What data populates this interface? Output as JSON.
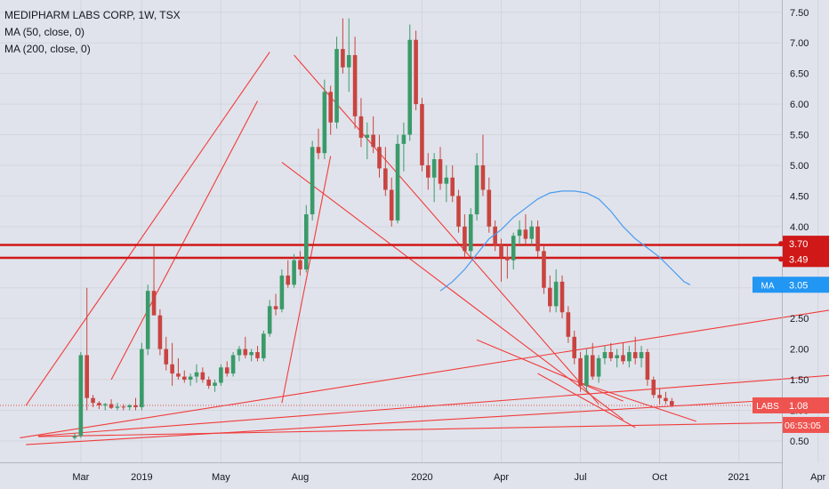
{
  "legend": {
    "title": "MEDIPHARM LABS CORP, 1W, TSX",
    "ma50": "MA (50, close, 0)",
    "ma200": "MA (200, close, 0)"
  },
  "chart_data": {
    "type": "candlestick",
    "y_ticks": [
      "0.50",
      "1.00",
      "1.50",
      "2.00",
      "2.50",
      "3.00",
      "3.50",
      "4.00",
      "4.50",
      "5.00",
      "5.50",
      "6.00",
      "6.50",
      "7.00",
      "7.50"
    ],
    "x_ticks": [
      {
        "label": "Mar",
        "week": 1
      },
      {
        "label": "2019",
        "week": 11
      },
      {
        "label": "May",
        "week": 24
      },
      {
        "label": "Aug",
        "week": 37
      },
      {
        "label": "2020",
        "week": 57
      },
      {
        "label": "Apr",
        "week": 70
      },
      {
        "label": "Jul",
        "week": 83
      },
      {
        "label": "Oct",
        "week": 96
      },
      {
        "label": "2021",
        "week": 109
      },
      {
        "label": "Apr",
        "week": 122
      }
    ],
    "ylim": [
      0.15,
      7.7
    ],
    "xlim": [
      -12,
      130
    ],
    "candles": [
      [
        0.55,
        0.62,
        0.52,
        0.58
      ],
      [
        0.58,
        1.95,
        0.55,
        1.9
      ],
      [
        1.9,
        3.0,
        1.0,
        1.2
      ],
      [
        1.2,
        1.25,
        1.05,
        1.12
      ],
      [
        1.12,
        1.15,
        1.02,
        1.08
      ],
      [
        1.08,
        1.12,
        1.0,
        1.1
      ],
      [
        1.1,
        1.18,
        1.02,
        1.04
      ],
      [
        1.04,
        1.12,
        1.0,
        1.06
      ],
      [
        1.06,
        1.1,
        1.0,
        1.05
      ],
      [
        1.05,
        1.1,
        1.0,
        1.08
      ],
      [
        1.08,
        1.2,
        1.0,
        1.05
      ],
      [
        1.05,
        2.1,
        1.0,
        2.0
      ],
      [
        2.0,
        3.05,
        1.9,
        2.95
      ],
      [
        2.95,
        3.7,
        2.6,
        2.55
      ],
      [
        2.55,
        2.65,
        1.9,
        2.0
      ],
      [
        2.0,
        2.2,
        1.65,
        1.75
      ],
      [
        1.75,
        2.1,
        1.4,
        1.6
      ],
      [
        1.6,
        1.85,
        1.5,
        1.55
      ],
      [
        1.55,
        1.65,
        1.45,
        1.5
      ],
      [
        1.5,
        1.6,
        1.4,
        1.55
      ],
      [
        1.55,
        1.75,
        1.45,
        1.62
      ],
      [
        1.62,
        1.7,
        1.45,
        1.5
      ],
      [
        1.5,
        1.55,
        1.35,
        1.4
      ],
      [
        1.4,
        1.5,
        1.3,
        1.45
      ],
      [
        1.45,
        1.75,
        1.4,
        1.7
      ],
      [
        1.7,
        1.8,
        1.55,
        1.6
      ],
      [
        1.6,
        1.95,
        1.55,
        1.9
      ],
      [
        1.9,
        2.05,
        1.8,
        2.0
      ],
      [
        2.0,
        2.2,
        1.85,
        1.9
      ],
      [
        1.9,
        2.0,
        1.8,
        1.95
      ],
      [
        1.95,
        2.05,
        1.8,
        1.85
      ],
      [
        1.85,
        2.3,
        1.8,
        2.25
      ],
      [
        2.25,
        2.8,
        2.2,
        2.7
      ],
      [
        2.7,
        2.9,
        2.55,
        2.65
      ],
      [
        2.65,
        3.3,
        2.6,
        3.2
      ],
      [
        3.2,
        3.45,
        3.0,
        3.05
      ],
      [
        3.05,
        3.55,
        3.0,
        3.45
      ],
      [
        3.45,
        3.6,
        3.2,
        3.3
      ],
      [
        3.3,
        4.35,
        3.25,
        4.2
      ],
      [
        4.2,
        5.4,
        4.1,
        5.3
      ],
      [
        5.3,
        5.6,
        5.1,
        5.2
      ],
      [
        5.2,
        6.4,
        5.1,
        6.2
      ],
      [
        6.2,
        6.3,
        5.5,
        5.7
      ],
      [
        5.7,
        7.1,
        5.6,
        6.9
      ],
      [
        6.9,
        7.4,
        6.5,
        6.6
      ],
      [
        6.6,
        7.4,
        6.2,
        6.8
      ],
      [
        6.8,
        7.1,
        5.6,
        5.8
      ],
      [
        5.8,
        6.1,
        5.3,
        5.45
      ],
      [
        5.45,
        5.7,
        5.1,
        5.5
      ],
      [
        5.5,
        5.8,
        5.2,
        5.3
      ],
      [
        5.3,
        5.5,
        4.8,
        4.95
      ],
      [
        4.95,
        5.3,
        4.5,
        4.6
      ],
      [
        4.6,
        4.8,
        4.0,
        4.1
      ],
      [
        4.1,
        5.5,
        4.05,
        5.35
      ],
      [
        5.35,
        5.7,
        4.9,
        5.5
      ],
      [
        5.5,
        7.3,
        5.4,
        7.05
      ],
      [
        7.05,
        7.2,
        5.9,
        6.0
      ],
      [
        6.0,
        6.1,
        4.9,
        5.0
      ],
      [
        5.0,
        5.2,
        4.6,
        4.8
      ],
      [
        4.8,
        5.2,
        4.4,
        5.1
      ],
      [
        5.1,
        5.3,
        4.6,
        4.7
      ],
      [
        4.7,
        5.0,
        4.4,
        4.8
      ],
      [
        4.8,
        5.0,
        4.4,
        4.5
      ],
      [
        4.5,
        4.6,
        3.9,
        4.0
      ],
      [
        4.0,
        4.2,
        3.5,
        3.6
      ],
      [
        3.6,
        4.3,
        3.5,
        4.2
      ],
      [
        4.2,
        5.2,
        4.1,
        5.0
      ],
      [
        5.0,
        5.5,
        4.5,
        4.6
      ],
      [
        4.6,
        4.8,
        3.9,
        4.0
      ],
      [
        4.0,
        4.1,
        3.6,
        3.7
      ],
      [
        3.7,
        3.8,
        3.1,
        3.5
      ],
      [
        3.5,
        3.7,
        3.15,
        3.45
      ],
      [
        3.45,
        3.9,
        3.3,
        3.85
      ],
      [
        3.85,
        4.1,
        3.7,
        3.95
      ],
      [
        3.95,
        4.2,
        3.7,
        3.8
      ],
      [
        3.8,
        4.1,
        3.7,
        4.0
      ],
      [
        4.0,
        4.1,
        3.5,
        3.6
      ],
      [
        3.6,
        3.7,
        2.9,
        3.0
      ],
      [
        3.0,
        3.2,
        2.6,
        2.7
      ],
      [
        2.7,
        3.3,
        2.6,
        3.1
      ],
      [
        3.1,
        3.2,
        2.5,
        2.6
      ],
      [
        2.6,
        2.7,
        2.1,
        2.2
      ],
      [
        2.2,
        2.3,
        1.75,
        1.85
      ],
      [
        1.85,
        1.95,
        1.3,
        1.4
      ],
      [
        1.4,
        2.0,
        1.3,
        1.9
      ],
      [
        1.9,
        2.1,
        1.5,
        1.55
      ],
      [
        1.55,
        1.9,
        1.45,
        1.85
      ],
      [
        1.85,
        2.05,
        1.75,
        1.95
      ],
      [
        1.95,
        2.1,
        1.8,
        1.85
      ],
      [
        1.85,
        2.0,
        1.7,
        1.9
      ],
      [
        1.9,
        2.1,
        1.75,
        1.8
      ],
      [
        1.8,
        2.05,
        1.7,
        1.95
      ],
      [
        1.95,
        2.2,
        1.75,
        1.85
      ],
      [
        1.85,
        2.05,
        1.7,
        1.95
      ],
      [
        1.95,
        2.0,
        1.4,
        1.5
      ],
      [
        1.5,
        1.55,
        1.2,
        1.25
      ],
      [
        1.25,
        1.35,
        1.1,
        1.2
      ],
      [
        1.2,
        1.3,
        1.1,
        1.15
      ],
      [
        1.15,
        1.2,
        1.05,
        1.08
      ]
    ],
    "ma50": [
      [
        60,
        2.95
      ],
      [
        62,
        3.1
      ],
      [
        64,
        3.3
      ],
      [
        66,
        3.55
      ],
      [
        68,
        3.8
      ],
      [
        70,
        3.95
      ],
      [
        72,
        4.15
      ],
      [
        74,
        4.3
      ],
      [
        76,
        4.45
      ],
      [
        78,
        4.55
      ],
      [
        80,
        4.58
      ],
      [
        82,
        4.58
      ],
      [
        84,
        4.55
      ],
      [
        86,
        4.45
      ],
      [
        88,
        4.25
      ],
      [
        90,
        4.0
      ],
      [
        92,
        3.8
      ],
      [
        94,
        3.65
      ],
      [
        96,
        3.5
      ],
      [
        98,
        3.3
      ],
      [
        100,
        3.1
      ],
      [
        101,
        3.05
      ]
    ],
    "trend_lines": [
      [
        -8,
        1.08,
        32,
        6.85
      ],
      [
        6,
        1.5,
        30,
        6.05
      ],
      [
        34,
        1.12,
        42,
        5.15
      ],
      [
        36,
        6.8,
        86,
        1.1
      ],
      [
        34,
        5.05,
        90,
        0.85
      ],
      [
        -9,
        0.55,
        128,
        2.7
      ],
      [
        -6,
        0.58,
        128,
        1.6
      ],
      [
        -6,
        0.57,
        128,
        0.82
      ],
      [
        -8,
        0.44,
        112,
        1.15
      ],
      [
        66,
        2.15,
        90,
        1.15
      ],
      [
        76,
        1.6,
        92,
        0.72
      ],
      [
        83,
        1.45,
        102,
        0.82
      ]
    ],
    "h_lines": [
      3.7,
      3.49
    ],
    "dotted_line": 1.08,
    "labels": {
      "h1": "3.70",
      "h2": "3.49",
      "ma_name": "MA",
      "ma_value": "3.05",
      "sym_name": "LABS",
      "sym_value": "1.08",
      "countdown": "06:53:05"
    },
    "colors": {
      "up": "#3a9a6a",
      "down": "#c94440",
      "trend": "#f23b3b",
      "ma": "#4a9bf0",
      "grid": "#d3d6de",
      "axis_text": "#131722"
    }
  }
}
